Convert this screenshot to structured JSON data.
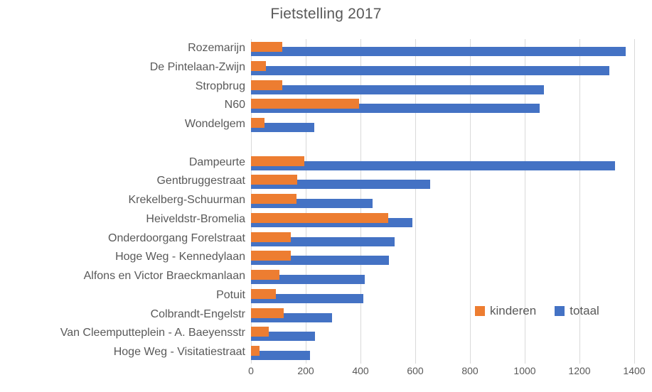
{
  "chart_data": {
    "type": "bar",
    "orientation": "horizontal",
    "title": "Fietstelling 2017",
    "categories": [
      "Rozemarijn",
      "De Pintelaan-Zwijn",
      "Stropbrug",
      "N60",
      "Wondelgem",
      "",
      "Dampeurte",
      "Gentbruggestraat",
      "Krekelberg-Schuurman",
      "Heiveldstr-Bromelia",
      "Onderdoorgang Forelstraat",
      "Hoge Weg - Kennedylaan",
      "Alfons en Victor Braeckmanlaan",
      "Potuit",
      "Colbrandt-Engelstr",
      "Van Cleemputteplein - A. Baeyensstr",
      "Hoge Weg - Visitatiestraat"
    ],
    "series": [
      {
        "name": "kinderen",
        "color": "#ED7D31",
        "values": [
          115,
          55,
          115,
          395,
          50,
          null,
          195,
          170,
          165,
          500,
          145,
          145,
          105,
          90,
          120,
          65,
          30
        ]
      },
      {
        "name": "totaal",
        "color": "#4472C4",
        "values": [
          1370,
          1310,
          1070,
          1055,
          230,
          null,
          1330,
          655,
          445,
          590,
          525,
          505,
          415,
          410,
          295,
          235,
          215
        ]
      }
    ],
    "x_axis": {
      "min": 0,
      "max": 1400,
      "tick_step": 200,
      "ticks": [
        0,
        200,
        400,
        600,
        800,
        1000,
        1200,
        1400
      ]
    },
    "legend": {
      "position": "inside-right-lower",
      "entries": [
        "kinderen",
        "totaal"
      ]
    },
    "grid": "vertical-on",
    "colors": {
      "gridline": "#D9D9D9",
      "text": "#595959",
      "background": "#FFFFFF"
    }
  }
}
